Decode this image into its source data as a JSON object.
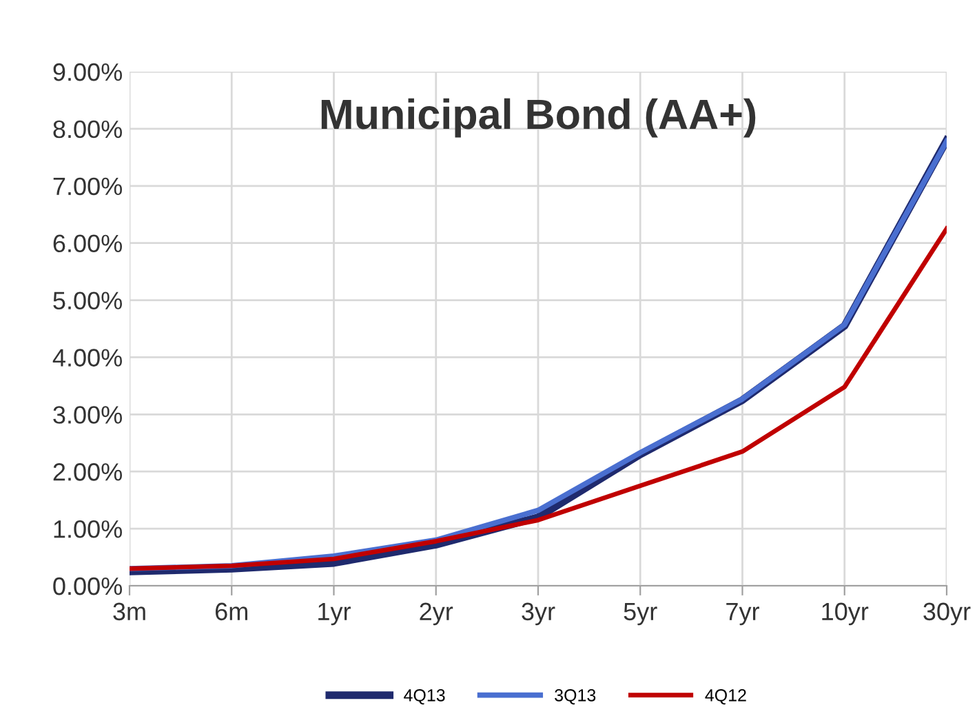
{
  "chart_data": {
    "type": "line",
    "title": "Municipal Bond (AA+)",
    "categories": [
      "3m",
      "6m",
      "1yr",
      "2yr",
      "3yr",
      "5yr",
      "7yr",
      "10yr",
      "30yr"
    ],
    "series": [
      {
        "name": "4Q13",
        "color": "#1f2a6e",
        "values": [
          0.25,
          0.3,
          0.4,
          0.72,
          1.2,
          2.3,
          3.25,
          4.55,
          7.8
        ]
      },
      {
        "name": "3Q13",
        "color": "#4a6fd0",
        "values": [
          0.3,
          0.35,
          0.52,
          0.8,
          1.32,
          2.33,
          3.27,
          4.57,
          7.78
        ]
      },
      {
        "name": "4Q12",
        "color": "#c00000",
        "values": [
          0.3,
          0.35,
          0.47,
          0.78,
          1.15,
          1.75,
          2.35,
          3.48,
          6.25
        ]
      }
    ],
    "ylim": [
      0,
      9
    ],
    "yticks": [
      {
        "value": 0,
        "label": "0.00%"
      },
      {
        "value": 1,
        "label": "1.00%"
      },
      {
        "value": 2,
        "label": "2.00%"
      },
      {
        "value": 3,
        "label": "3.00%"
      },
      {
        "value": 4,
        "label": "4.00%"
      },
      {
        "value": 5,
        "label": "5.00%"
      },
      {
        "value": 6,
        "label": "6.00%"
      },
      {
        "value": 7,
        "label": "7.00%"
      },
      {
        "value": 8,
        "label": "8.00%"
      },
      {
        "value": 9,
        "label": "9.00%"
      }
    ],
    "grid": true,
    "legend": "bottom",
    "marker": "none",
    "line_style": "solid"
  }
}
